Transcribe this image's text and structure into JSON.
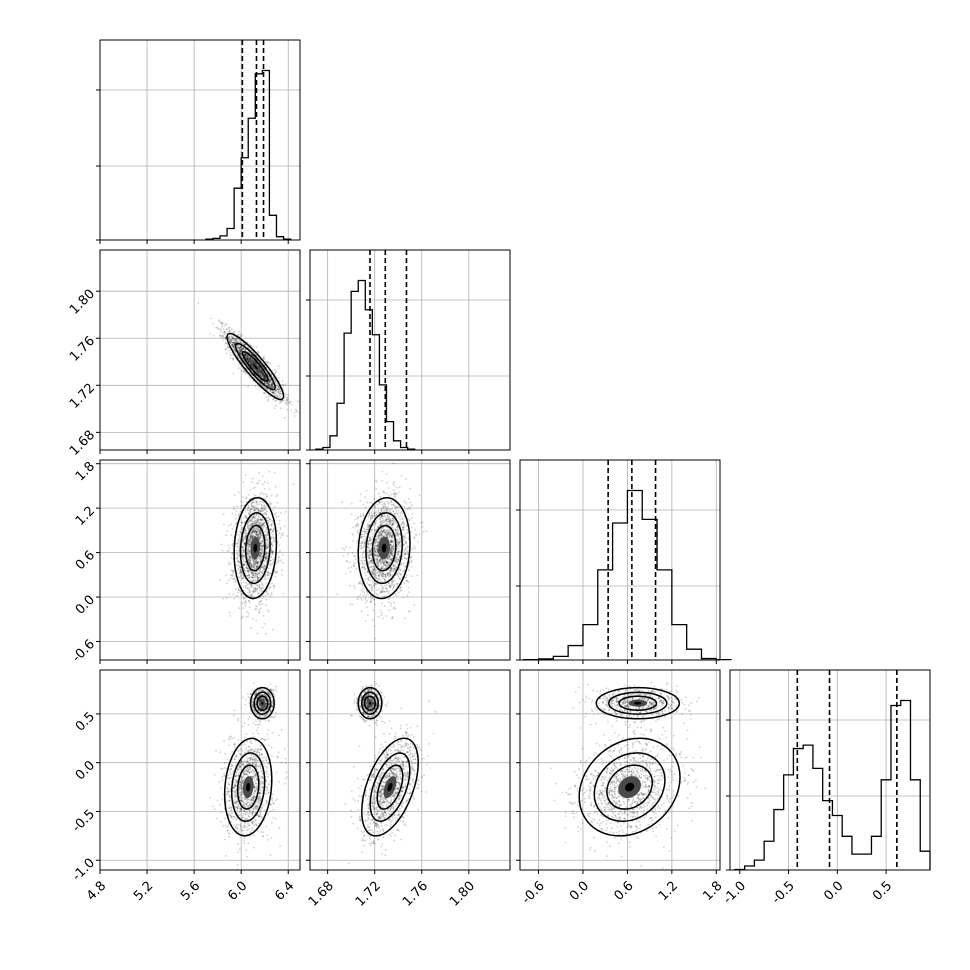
{
  "chart_data": {
    "type": "corner",
    "grid": true,
    "parameters": [
      {
        "range": [
          4.8,
          6.5
        ],
        "ticks": [
          "4.8",
          "5.2",
          "5.6",
          "6.0",
          "6.4"
        ],
        "tick_values": [
          4.8,
          5.2,
          5.6,
          6.0,
          6.4
        ],
        "hist_bins": {
          "start": 5.7,
          "width": 0.06,
          "counts": [
            1,
            2,
            5,
            14,
            63,
            100,
            148,
            202,
            206,
            30,
            4,
            1
          ]
        },
        "quantiles": [
          6.01,
          6.13,
          6.19
        ]
      },
      {
        "range": [
          1.665,
          1.835
        ],
        "ticks": [
          "1.68",
          "1.72",
          "1.76",
          "1.80"
        ],
        "tick_values": [
          1.68,
          1.72,
          1.76,
          1.8
        ],
        "hist_bins": {
          "start": 1.67,
          "width": 0.006,
          "counts": [
            1,
            3,
            17,
            56,
            140,
            190,
            203,
            168,
            138,
            78,
            34,
            11,
            3,
            1
          ]
        },
        "quantiles": [
          1.716,
          1.729,
          1.747
        ]
      },
      {
        "range": [
          -0.85,
          1.85
        ],
        "ticks": [
          "-0.6",
          "0.0",
          "0.6",
          "1.2",
          "1.8"
        ],
        "tick_values": [
          -0.6,
          0.0,
          0.6,
          1.2,
          1.8
        ],
        "hist_bins": {
          "start": -0.8,
          "width": 0.2,
          "counts": [
            1,
            3,
            10,
            40,
            98,
            250,
            380,
            470,
            390,
            250,
            98,
            30,
            4,
            1
          ]
        },
        "quantiles": [
          0.34,
          0.66,
          0.98
        ]
      },
      {
        "range": [
          -1.1,
          0.95
        ],
        "ticks": [
          "-1.0",
          "-0.5",
          "0.0",
          "0.5"
        ],
        "tick_values": [
          -1.0,
          -0.5,
          0.0,
          0.5
        ],
        "hist_bins": {
          "start": -1.05,
          "width": 0.1,
          "counts": [
            1,
            8,
            20,
            58,
            122,
            192,
            245,
            252,
            205,
            140,
            110,
            68,
            32,
            32,
            68,
            182,
            332,
            342,
            182,
            38
          ]
        },
        "quantiles": [
          -0.41,
          -0.08,
          0.61
        ]
      }
    ],
    "scatter_blobs": [
      {
        "row": 1,
        "col": 0,
        "modes": [
          {
            "mx": 6.12,
            "my": 1.736,
            "sx": 0.12,
            "sy": 0.014,
            "rho": -0.9,
            "w": 1
          }
        ]
      },
      {
        "row": 2,
        "col": 0,
        "modes": [
          {
            "mx": 6.12,
            "my": 0.66,
            "sx": 0.09,
            "sy": 0.34,
            "rho": 0.1,
            "w": 1
          }
        ]
      },
      {
        "row": 2,
        "col": 1,
        "modes": [
          {
            "mx": 1.728,
            "my": 0.66,
            "sx": 0.011,
            "sy": 0.34,
            "rho": 0.1,
            "w": 1
          }
        ]
      },
      {
        "row": 3,
        "col": 0,
        "modes": [
          {
            "mx": 6.18,
            "my": 0.61,
            "sx": 0.05,
            "sy": 0.08,
            "rho": 0,
            "w": 0.35
          },
          {
            "mx": 6.06,
            "my": -0.25,
            "sx": 0.1,
            "sy": 0.25,
            "rho": 0.15,
            "w": 0.65
          }
        ]
      },
      {
        "row": 3,
        "col": 1,
        "modes": [
          {
            "mx": 1.716,
            "my": 0.61,
            "sx": 0.005,
            "sy": 0.08,
            "rho": 0,
            "w": 0.35
          },
          {
            "mx": 1.733,
            "my": -0.25,
            "sx": 0.012,
            "sy": 0.25,
            "rho": 0.5,
            "w": 0.65
          }
        ]
      },
      {
        "row": 3,
        "col": 2,
        "modes": [
          {
            "mx": 0.74,
            "my": 0.61,
            "sx": 0.28,
            "sy": 0.08,
            "rho": 0,
            "w": 0.35
          },
          {
            "mx": 0.63,
            "my": -0.25,
            "sx": 0.34,
            "sy": 0.25,
            "rho": 0.2,
            "w": 0.65
          }
        ]
      }
    ]
  }
}
